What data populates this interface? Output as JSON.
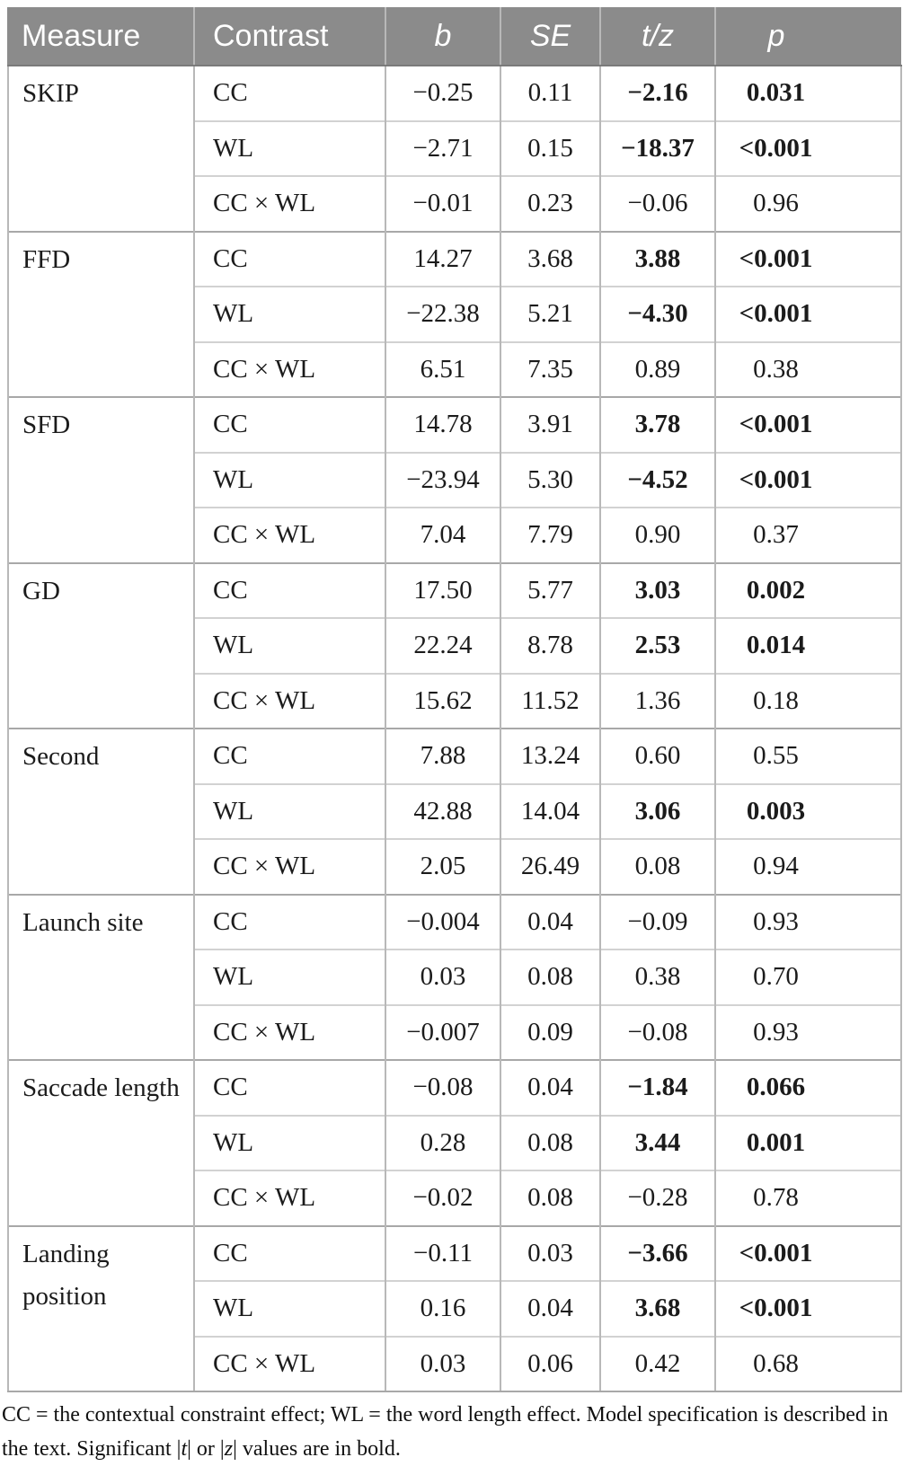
{
  "table": {
    "header_bg": "#8b8b8b",
    "columns": [
      "Measure",
      "Contrast",
      "b",
      "SE",
      "t/z",
      "p"
    ],
    "groups": [
      {
        "measure": "SKIP",
        "rows": [
          {
            "contrast": "CC",
            "b": "−0.25",
            "se": "0.11",
            "tz": "−2.16",
            "p": "0.031",
            "sig": true
          },
          {
            "contrast": "WL",
            "b": "−2.71",
            "se": "0.15",
            "tz": "−18.37",
            "p": "<0.001",
            "sig": true
          },
          {
            "contrast": "CC × WL",
            "b": "−0.01",
            "se": "0.23",
            "tz": "−0.06",
            "p": "0.96",
            "sig": false
          }
        ]
      },
      {
        "measure": "FFD",
        "rows": [
          {
            "contrast": "CC",
            "b": "14.27",
            "se": "3.68",
            "tz": "3.88",
            "p": "<0.001",
            "sig": true
          },
          {
            "contrast": "WL",
            "b": "−22.38",
            "se": "5.21",
            "tz": "−4.30",
            "p": "<0.001",
            "sig": true
          },
          {
            "contrast": "CC × WL",
            "b": "6.51",
            "se": "7.35",
            "tz": "0.89",
            "p": "0.38",
            "sig": false
          }
        ]
      },
      {
        "measure": "SFD",
        "rows": [
          {
            "contrast": "CC",
            "b": "14.78",
            "se": "3.91",
            "tz": "3.78",
            "p": "<0.001",
            "sig": true
          },
          {
            "contrast": "WL",
            "b": "−23.94",
            "se": "5.30",
            "tz": "−4.52",
            "p": "<0.001",
            "sig": true
          },
          {
            "contrast": "CC × WL",
            "b": "7.04",
            "se": "7.79",
            "tz": "0.90",
            "p": "0.37",
            "sig": false
          }
        ]
      },
      {
        "measure": "GD",
        "rows": [
          {
            "contrast": "CC",
            "b": "17.50",
            "se": "5.77",
            "tz": "3.03",
            "p": "0.002",
            "sig": true
          },
          {
            "contrast": "WL",
            "b": "22.24",
            "se": "8.78",
            "tz": "2.53",
            "p": "0.014",
            "sig": true
          },
          {
            "contrast": "CC × WL",
            "b": "15.62",
            "se": "11.52",
            "tz": "1.36",
            "p": "0.18",
            "sig": false
          }
        ]
      },
      {
        "measure": "Second",
        "rows": [
          {
            "contrast": "CC",
            "b": "7.88",
            "se": "13.24",
            "tz": "0.60",
            "p": "0.55",
            "sig": false
          },
          {
            "contrast": "WL",
            "b": "42.88",
            "se": "14.04",
            "tz": "3.06",
            "p": "0.003",
            "sig": true
          },
          {
            "contrast": "CC × WL",
            "b": "2.05",
            "se": "26.49",
            "tz": "0.08",
            "p": "0.94",
            "sig": false
          }
        ]
      },
      {
        "measure": "Launch site",
        "rows": [
          {
            "contrast": "CC",
            "b": "−0.004",
            "se": "0.04",
            "tz": "−0.09",
            "p": "0.93",
            "sig": false
          },
          {
            "contrast": "WL",
            "b": "0.03",
            "se": "0.08",
            "tz": "0.38",
            "p": "0.70",
            "sig": false
          },
          {
            "contrast": "CC × WL",
            "b": "−0.007",
            "se": "0.09",
            "tz": "−0.08",
            "p": "0.93",
            "sig": false
          }
        ]
      },
      {
        "measure": "Saccade length",
        "rows": [
          {
            "contrast": "CC",
            "b": "−0.08",
            "se": "0.04",
            "tz": "−1.84",
            "p": "0.066",
            "sig": true
          },
          {
            "contrast": "WL",
            "b": "0.28",
            "se": "0.08",
            "tz": "3.44",
            "p": "0.001",
            "sig": true
          },
          {
            "contrast": "CC × WL",
            "b": "−0.02",
            "se": "0.08",
            "tz": "−0.28",
            "p": "0.78",
            "sig": false
          }
        ]
      },
      {
        "measure": "Landing position",
        "rows": [
          {
            "contrast": "CC",
            "b": "−0.11",
            "se": "0.03",
            "tz": "−3.66",
            "p": "<0.001",
            "sig": true
          },
          {
            "contrast": "WL",
            "b": "0.16",
            "se": "0.04",
            "tz": "3.68",
            "p": "<0.001",
            "sig": true
          },
          {
            "contrast": "CC × WL",
            "b": "0.03",
            "se": "0.06",
            "tz": "0.42",
            "p": "0.68",
            "sig": false
          }
        ]
      }
    ],
    "footnote": {
      "text_before_t": "CC = the contextual constraint effect; WL = the word length effect. Model specification is described in the text. Significant |",
      "t": "t",
      "between": "| or |",
      "z": "z",
      "text_after": "| values are in bold."
    }
  }
}
